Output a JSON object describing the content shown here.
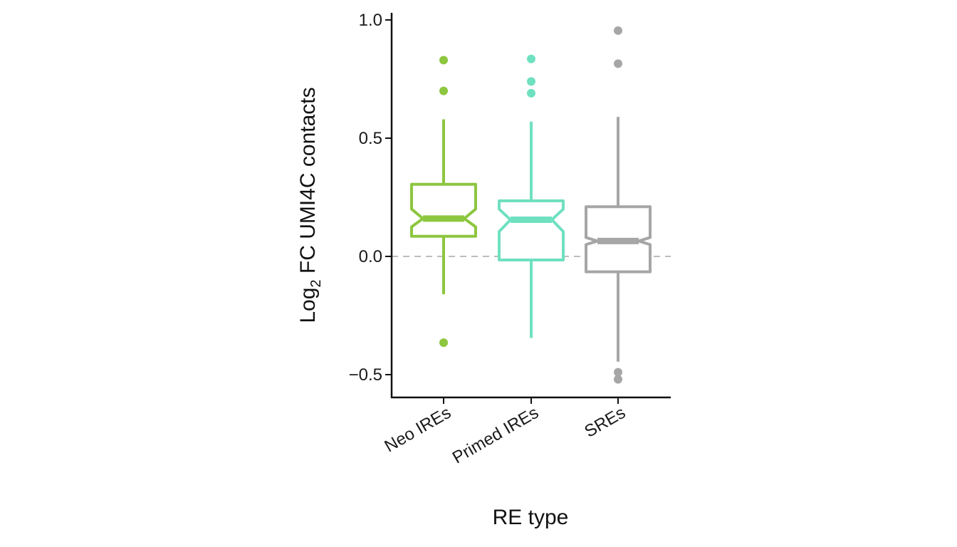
{
  "chart_data": {
    "type": "boxplot",
    "notched": true,
    "xlabel": "RE type",
    "ylabel_main": "Log",
    "ylabel_sub": "2",
    "ylabel_rest": " FC UMI4C contacts",
    "ylim": [
      -0.6,
      1.04
    ],
    "yticks": [
      {
        "value": -0.5,
        "label": "−0.5"
      },
      {
        "value": 0.0,
        "label": "0.0"
      },
      {
        "value": 0.5,
        "label": "0.5"
      },
      {
        "value": 1.0,
        "label": "1.0"
      }
    ],
    "reference_line": {
      "y": 0.0,
      "style": "dashed",
      "color": "#bdbdbd"
    },
    "grid": false,
    "categories": [
      "Neo IREs",
      "Primed IREs",
      "SREs"
    ],
    "series": [
      {
        "color": "#8dc63f",
        "median": 0.16,
        "q1": 0.085,
        "q3": 0.305,
        "whisker_low": -0.16,
        "whisker_high": 0.58,
        "notch_low": 0.125,
        "notch_high": 0.2,
        "outliers": [
          0.83,
          0.7,
          -0.365
        ]
      },
      {
        "color": "#6fe0c0",
        "median": 0.155,
        "q1": -0.015,
        "q3": 0.235,
        "whisker_low": -0.345,
        "whisker_high": 0.57,
        "notch_low": 0.105,
        "notch_high": 0.2,
        "outliers": [
          0.835,
          0.74,
          0.69
        ]
      },
      {
        "color": "#a6a6a6",
        "median": 0.065,
        "q1": -0.065,
        "q3": 0.21,
        "whisker_low": -0.445,
        "whisker_high": 0.59,
        "notch_low": 0.05,
        "notch_high": 0.08,
        "outliers": [
          0.955,
          0.815,
          -0.49,
          -0.52
        ]
      }
    ]
  }
}
